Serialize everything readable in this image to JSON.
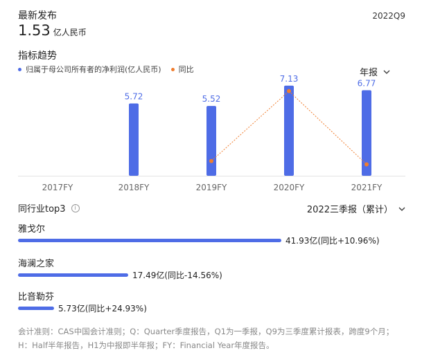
{
  "header": {
    "latest_label": "最新发布",
    "period": "2022Q9",
    "value": "1.53",
    "unit": "亿人民币"
  },
  "trend": {
    "title": "指标趋势",
    "legend": [
      {
        "label": "归属于母公司所有者的净利润(亿人民币)",
        "color": "#4e6ce6"
      },
      {
        "label": "同比",
        "color": "#f07d2e"
      }
    ],
    "period_selector": "年报"
  },
  "chart_data": {
    "type": "bar",
    "categories": [
      "2017FY",
      "2018FY",
      "2019FY",
      "2020FY",
      "2021FY"
    ],
    "series": [
      {
        "name": "归属于母公司所有者的净利润(亿人民币)",
        "type": "bar",
        "values": [
          null,
          5.72,
          5.52,
          7.13,
          6.77
        ],
        "labels": [
          "",
          "5.72",
          "5.52",
          "7.13",
          "6.77"
        ],
        "color": "#4e6ce6"
      },
      {
        "name": "同比",
        "type": "line",
        "values": [
          null,
          null,
          -0.035,
          0.2917,
          -0.0505
        ],
        "color": "#f07d2e",
        "style": "dotted"
      }
    ],
    "ylim": [
      0,
      7.5
    ],
    "yoy_ylim": [
      -0.12,
      0.31
    ],
    "grid": false
  },
  "peers": {
    "title": "同行业top3",
    "selector": "2022三季报（累计）",
    "items": [
      {
        "name": "雅戈尔",
        "value": 41.93,
        "label": "41.93亿(同比+10.96%)"
      },
      {
        "name": "海澜之家",
        "value": 17.49,
        "label": "17.49亿(同比-14.56%)"
      },
      {
        "name": "比音勒芬",
        "value": 5.73,
        "label": "5.73亿(同比+24.93%)"
      }
    ],
    "max_value": 41.93,
    "bar_color": "#4e6ce6"
  },
  "footnote": "会计准则：CAS中国会计准则；Q：Quarter季度报告，Q1为一季报，Q9为三季度累计报表，跨度9个月；H：Half半年报告，H1为中报即半年报；FY：Financial Year年度报告。"
}
